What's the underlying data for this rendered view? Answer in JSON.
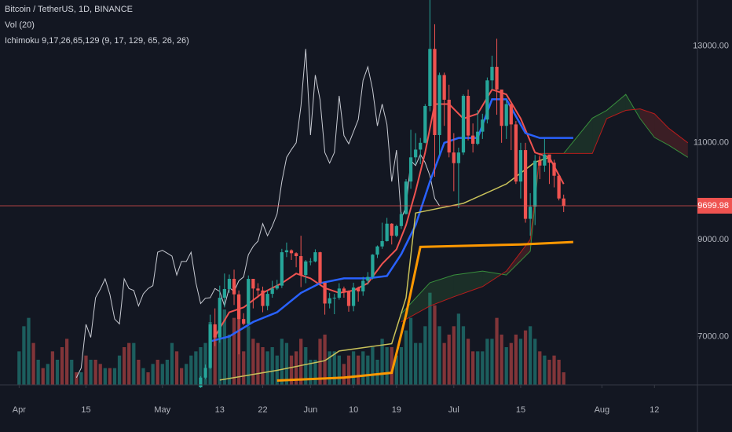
{
  "chart_data": {
    "type": "candlestick",
    "title": "Bitcoin / TetherUS, 1D, BINANCE",
    "volume_label": "Vol (20)",
    "indicator_label": "Ichimoku 9,17,26,65,129 (9, 17, 129, 65, 26, 26)",
    "xlim": [
      "Mar 28",
      "Aug 21"
    ],
    "xticks": [
      {
        "value": "Apr 1",
        "label": "Apr"
      },
      {
        "value": "Apr 15",
        "label": "15"
      },
      {
        "value": "May 1",
        "label": "May"
      },
      {
        "value": "May 13",
        "label": "13"
      },
      {
        "value": "May 22",
        "label": "22"
      },
      {
        "value": "Jun 1",
        "label": "Jun"
      },
      {
        "value": "Jun 10",
        "label": "10"
      },
      {
        "value": "Jun 19",
        "label": "19"
      },
      {
        "value": "Jul 1",
        "label": "Jul"
      },
      {
        "value": "Jul 15",
        "label": "15"
      },
      {
        "value": "Aug 1",
        "label": "Aug"
      },
      {
        "value": "Aug 12",
        "label": "12"
      }
    ],
    "ylim": [
      6000,
      13950
    ],
    "yticks": [
      {
        "value": 13000,
        "label": "13000.00"
      },
      {
        "value": 11000,
        "label": "11000.00"
      },
      {
        "value": 9000,
        "label": "9000.00"
      },
      {
        "value": 7000,
        "label": "7000.00"
      }
    ],
    "last_price": 9699.98,
    "up_color": "#26a69a",
    "down_color": "#ef5350",
    "volume_lim": [
      0,
      150
    ],
    "lagging_shift": 26,
    "lagging_color": "#c8cbd3",
    "candles": {
      "dates": [
        "May 9",
        "May 10",
        "May 11",
        "May 12",
        "May 13",
        "May 14",
        "May 15",
        "May 16",
        "May 17",
        "May 18",
        "May 19",
        "May 20",
        "May 21",
        "May 22",
        "May 23",
        "May 24",
        "May 25",
        "May 26",
        "May 27",
        "May 28",
        "May 29",
        "May 30",
        "May 31",
        "Jun 1",
        "Jun 2",
        "Jun 3",
        "Jun 4",
        "Jun 5",
        "Jun 6",
        "Jun 7",
        "Jun 8",
        "Jun 9",
        "Jun 10",
        "Jun 11",
        "Jun 12",
        "Jun 13",
        "Jun 14",
        "Jun 15",
        "Jun 16",
        "Jun 17",
        "Jun 18",
        "Jun 19",
        "Jun 20",
        "Jun 21",
        "Jun 22",
        "Jun 23",
        "Jun 24",
        "Jun 25",
        "Jun 26",
        "Jun 27",
        "Jun 28",
        "Jun 29",
        "Jun 30",
        "Jul 1",
        "Jul 2",
        "Jul 3",
        "Jul 4",
        "Jul 5",
        "Jul 6",
        "Jul 7",
        "Jul 8",
        "Jul 9",
        "Jul 10",
        "Jul 11",
        "Jul 12",
        "Jul 13",
        "Jul 14",
        "Jul 15",
        "Jul 16",
        "Jul 17",
        "Jul 18",
        "Jul 19",
        "Jul 20",
        "Jul 21",
        "Jul 22",
        "Jul 23",
        "Jul 24"
      ],
      "open": [
        5950,
        6150,
        6350,
        7250,
        6980,
        7800,
        7980,
        8190,
        7870,
        7360,
        7260,
        8190,
        7990,
        7950,
        7630,
        7880,
        7990,
        8050,
        8740,
        8780,
        8720,
        8660,
        8270,
        8550,
        8550,
        8740,
        8110,
        7680,
        7790,
        7800,
        7990,
        7930,
        7630,
        8010,
        7930,
        8150,
        8230,
        8690,
        8860,
        8970,
        9330,
        9080,
        9280,
        9530,
        10200,
        10700,
        10860,
        11000,
        11760,
        12940,
        11160,
        12400,
        11890,
        10800,
        10580,
        10800,
        11970,
        11150,
        10980,
        11230,
        11480,
        12290,
        12570,
        12100,
        11350,
        11800,
        11380,
        10200,
        10850,
        9430,
        9680,
        10630,
        10530,
        10760,
        10590,
        10320,
        9850
      ],
      "high": [
        6180,
        6420,
        7450,
        7580,
        8050,
        8300,
        8280,
        8380,
        7950,
        7480,
        8260,
        8190,
        8100,
        8030,
        7950,
        8150,
        8170,
        8810,
        8940,
        8800,
        8740,
        9080,
        8580,
        8620,
        8800,
        8750,
        8110,
        7900,
        7880,
        8100,
        8030,
        7950,
        8110,
        8030,
        8230,
        8330,
        8700,
        8880,
        9350,
        9450,
        9340,
        9310,
        9570,
        10250,
        11270,
        11200,
        11100,
        11800,
        13970,
        13450,
        12450,
        12450,
        12200,
        11200,
        10900,
        12000,
        12100,
        11400,
        11680,
        11600,
        12350,
        12800,
        13150,
        12100,
        11900,
        11830,
        11450,
        11000,
        11000,
        9960,
        10750,
        10720,
        11080,
        10700,
        10650,
        10330,
        9930
      ],
      "low": [
        5940,
        6120,
        6330,
        6800,
        6870,
        7600,
        7900,
        7650,
        6630,
        7230,
        7250,
        7580,
        7800,
        7500,
        7540,
        7800,
        7960,
        8000,
        8640,
        8580,
        8430,
        8020,
        8100,
        8470,
        8530,
        8060,
        7450,
        7580,
        7460,
        7760,
        7800,
        7510,
        7520,
        7720,
        7840,
        8070,
        8180,
        8620,
        8810,
        8960,
        8900,
        9050,
        9220,
        9520,
        10050,
        10550,
        10560,
        10990,
        11650,
        10300,
        10750,
        11350,
        10700,
        10000,
        9650,
        10750,
        11050,
        10800,
        10950,
        11080,
        11400,
        12100,
        11580,
        11000,
        11080,
        10850,
        10150,
        9850,
        9350,
        9080,
        9300,
        10250,
        10400,
        10150,
        10080,
        9810,
        9570
      ],
      "close": [
        6150,
        6350,
        7250,
        6980,
        7800,
        7980,
        8190,
        7870,
        7360,
        7260,
        8190,
        7990,
        7950,
        7630,
        7880,
        7990,
        8050,
        8740,
        8780,
        8720,
        8660,
        8270,
        8550,
        8550,
        8740,
        8110,
        7680,
        7790,
        7800,
        7990,
        7930,
        7630,
        8010,
        7930,
        8150,
        8230,
        8690,
        8860,
        8970,
        9330,
        9080,
        9280,
        9530,
        10200,
        10700,
        10860,
        11000,
        11760,
        12940,
        11160,
        12400,
        11890,
        10800,
        10580,
        10800,
        11970,
        11150,
        10980,
        11230,
        11480,
        12290,
        12570,
        12100,
        11350,
        11800,
        11380,
        10200,
        10850,
        9430,
        9680,
        10630,
        10530,
        10760,
        10590,
        10320,
        9850,
        9699.98
      ],
      "volume": [
        45,
        50,
        75,
        60,
        70,
        90,
        60,
        80,
        95,
        40,
        70,
        55,
        50,
        45,
        40,
        45,
        35,
        55,
        50,
        35,
        40,
        55,
        45,
        30,
        30,
        55,
        60,
        40,
        40,
        35,
        25,
        35,
        40,
        35,
        40,
        35,
        45,
        30,
        55,
        45,
        45,
        35,
        45,
        65,
        80,
        50,
        50,
        70,
        110,
        95,
        70,
        50,
        60,
        70,
        85,
        70,
        55,
        40,
        40,
        40,
        55,
        55,
        80,
        60,
        45,
        50,
        60,
        55,
        65,
        70,
        55,
        40,
        35,
        30,
        35,
        30,
        15
      ]
    },
    "early_volume": {
      "dates": [
        "Apr 1",
        "Apr 2",
        "Apr 3",
        "Apr 4",
        "Apr 5",
        "Apr 6",
        "Apr 7",
        "Apr 8",
        "Apr 9",
        "Apr 10",
        "Apr 11",
        "Apr 12",
        "Apr 13",
        "Apr 14",
        "Apr 15",
        "Apr 16",
        "Apr 17",
        "Apr 18",
        "Apr 19",
        "Apr 20",
        "Apr 21",
        "Apr 22",
        "Apr 23",
        "Apr 24",
        "Apr 25",
        "Apr 26",
        "Apr 27",
        "Apr 28",
        "Apr 29",
        "Apr 30",
        "May 1",
        "May 2",
        "May 3",
        "May 4",
        "May 5",
        "May 6",
        "May 7",
        "May 8"
      ],
      "values": [
        40,
        70,
        80,
        50,
        30,
        20,
        25,
        40,
        30,
        45,
        55,
        30,
        15,
        15,
        35,
        30,
        30,
        25,
        20,
        20,
        20,
        35,
        45,
        50,
        50,
        30,
        20,
        15,
        25,
        30,
        25,
        30,
        50,
        40,
        20,
        25,
        35,
        40
      ],
      "up": [
        true,
        true,
        true,
        false,
        true,
        false,
        true,
        false,
        true,
        false,
        false,
        true,
        false,
        true,
        false,
        true,
        false,
        false,
        true,
        false,
        true,
        true,
        false,
        false,
        true,
        false,
        true,
        false,
        true,
        false,
        true,
        true,
        true,
        false,
        false,
        true,
        true,
        true
      ]
    },
    "lines": [
      {
        "color": "#ef5350",
        "width": 2,
        "dates": [
          "May 12",
          "May 15",
          "May 18",
          "May 22",
          "May 26",
          "May 29",
          "Jun 1",
          "Jun 4",
          "Jun 7",
          "Jun 10",
          "Jun 13",
          "Jun 16",
          "Jun 19",
          "Jun 21",
          "Jun 23",
          "Jun 25",
          "Jun 27",
          "Jun 30",
          "Jul 3",
          "Jul 6",
          "Jul 9",
          "Jul 12",
          "Jul 15",
          "Jul 18",
          "Jul 21",
          "Jul 24"
        ],
        "values": [
          7000,
          7500,
          7600,
          7900,
          8100,
          8300,
          8200,
          8000,
          7900,
          7950,
          8100,
          8500,
          8800,
          9300,
          10000,
          10800,
          11800,
          11800,
          11500,
          11600,
          12100,
          12000,
          11500,
          10800,
          10700,
          10150
        ]
      },
      {
        "color": "#2962ff",
        "width": 2.5,
        "dates": [
          "May 11",
          "May 15",
          "May 20",
          "May 25",
          "May 30",
          "Jun 3",
          "Jun 8",
          "Jun 13",
          "Jun 17",
          "Jun 20",
          "Jun 23",
          "Jun 26",
          "Jun 29",
          "Jul 2",
          "Jul 6",
          "Jul 9",
          "Jul 12",
          "Jul 16",
          "Jul 19",
          "Jul 26"
        ],
        "values": [
          6900,
          7000,
          7300,
          7500,
          7900,
          8100,
          8200,
          8200,
          8250,
          8700,
          9300,
          10200,
          11000,
          11100,
          11100,
          11900,
          11900,
          11200,
          11100,
          11100
        ]
      },
      {
        "color": "#c9c25a",
        "width": 1.5,
        "dates": [
          "May 13",
          "May 25",
          "Jun 4",
          "Jun 7",
          "Jun 18",
          "Jun 21",
          "Jun 23",
          "Jul 3",
          "Jul 12",
          "Jul 18",
          "Jul 21"
        ],
        "values": [
          6100,
          6300,
          6500,
          6700,
          6850,
          7800,
          9550,
          9750,
          10150,
          10600,
          10700
        ]
      },
      {
        "color": "#ff9800",
        "width": 3,
        "dates": [
          "May 25",
          "Jun 8",
          "Jun 18",
          "Jun 21",
          "Jun 24",
          "Jul 15",
          "Jul 26"
        ],
        "values": [
          6090,
          6150,
          6250,
          7450,
          8850,
          8900,
          8950
        ]
      }
    ],
    "cloud": {
      "dates": [
        "Jun 20",
        "Jun 26",
        "Jul 1",
        "Jul 7",
        "Jul 12",
        "Jul 17",
        "Jul 19",
        "Jul 24",
        "Jul 30",
        "Aug 2",
        "Aug 6",
        "Aug 9",
        "Aug 12",
        "Aug 15",
        "Aug 19"
      ],
      "span_a": [
        7470,
        8110,
        8270,
        8350,
        8270,
        8760,
        10780,
        10780,
        11510,
        11670,
        12000,
        11500,
        11110,
        10950,
        10700
      ],
      "span_b": [
        7300,
        7630,
        7820,
        8030,
        8350,
        9000,
        10780,
        10780,
        10780,
        11500,
        11670,
        11700,
        11600,
        11300,
        11000
      ],
      "span_a_color": "#388e3c",
      "span_b_color": "#b71c1c",
      "up_fill": "rgba(67,160,71,0.18)",
      "down_fill": "rgba(244,67,54,0.18)"
    }
  }
}
